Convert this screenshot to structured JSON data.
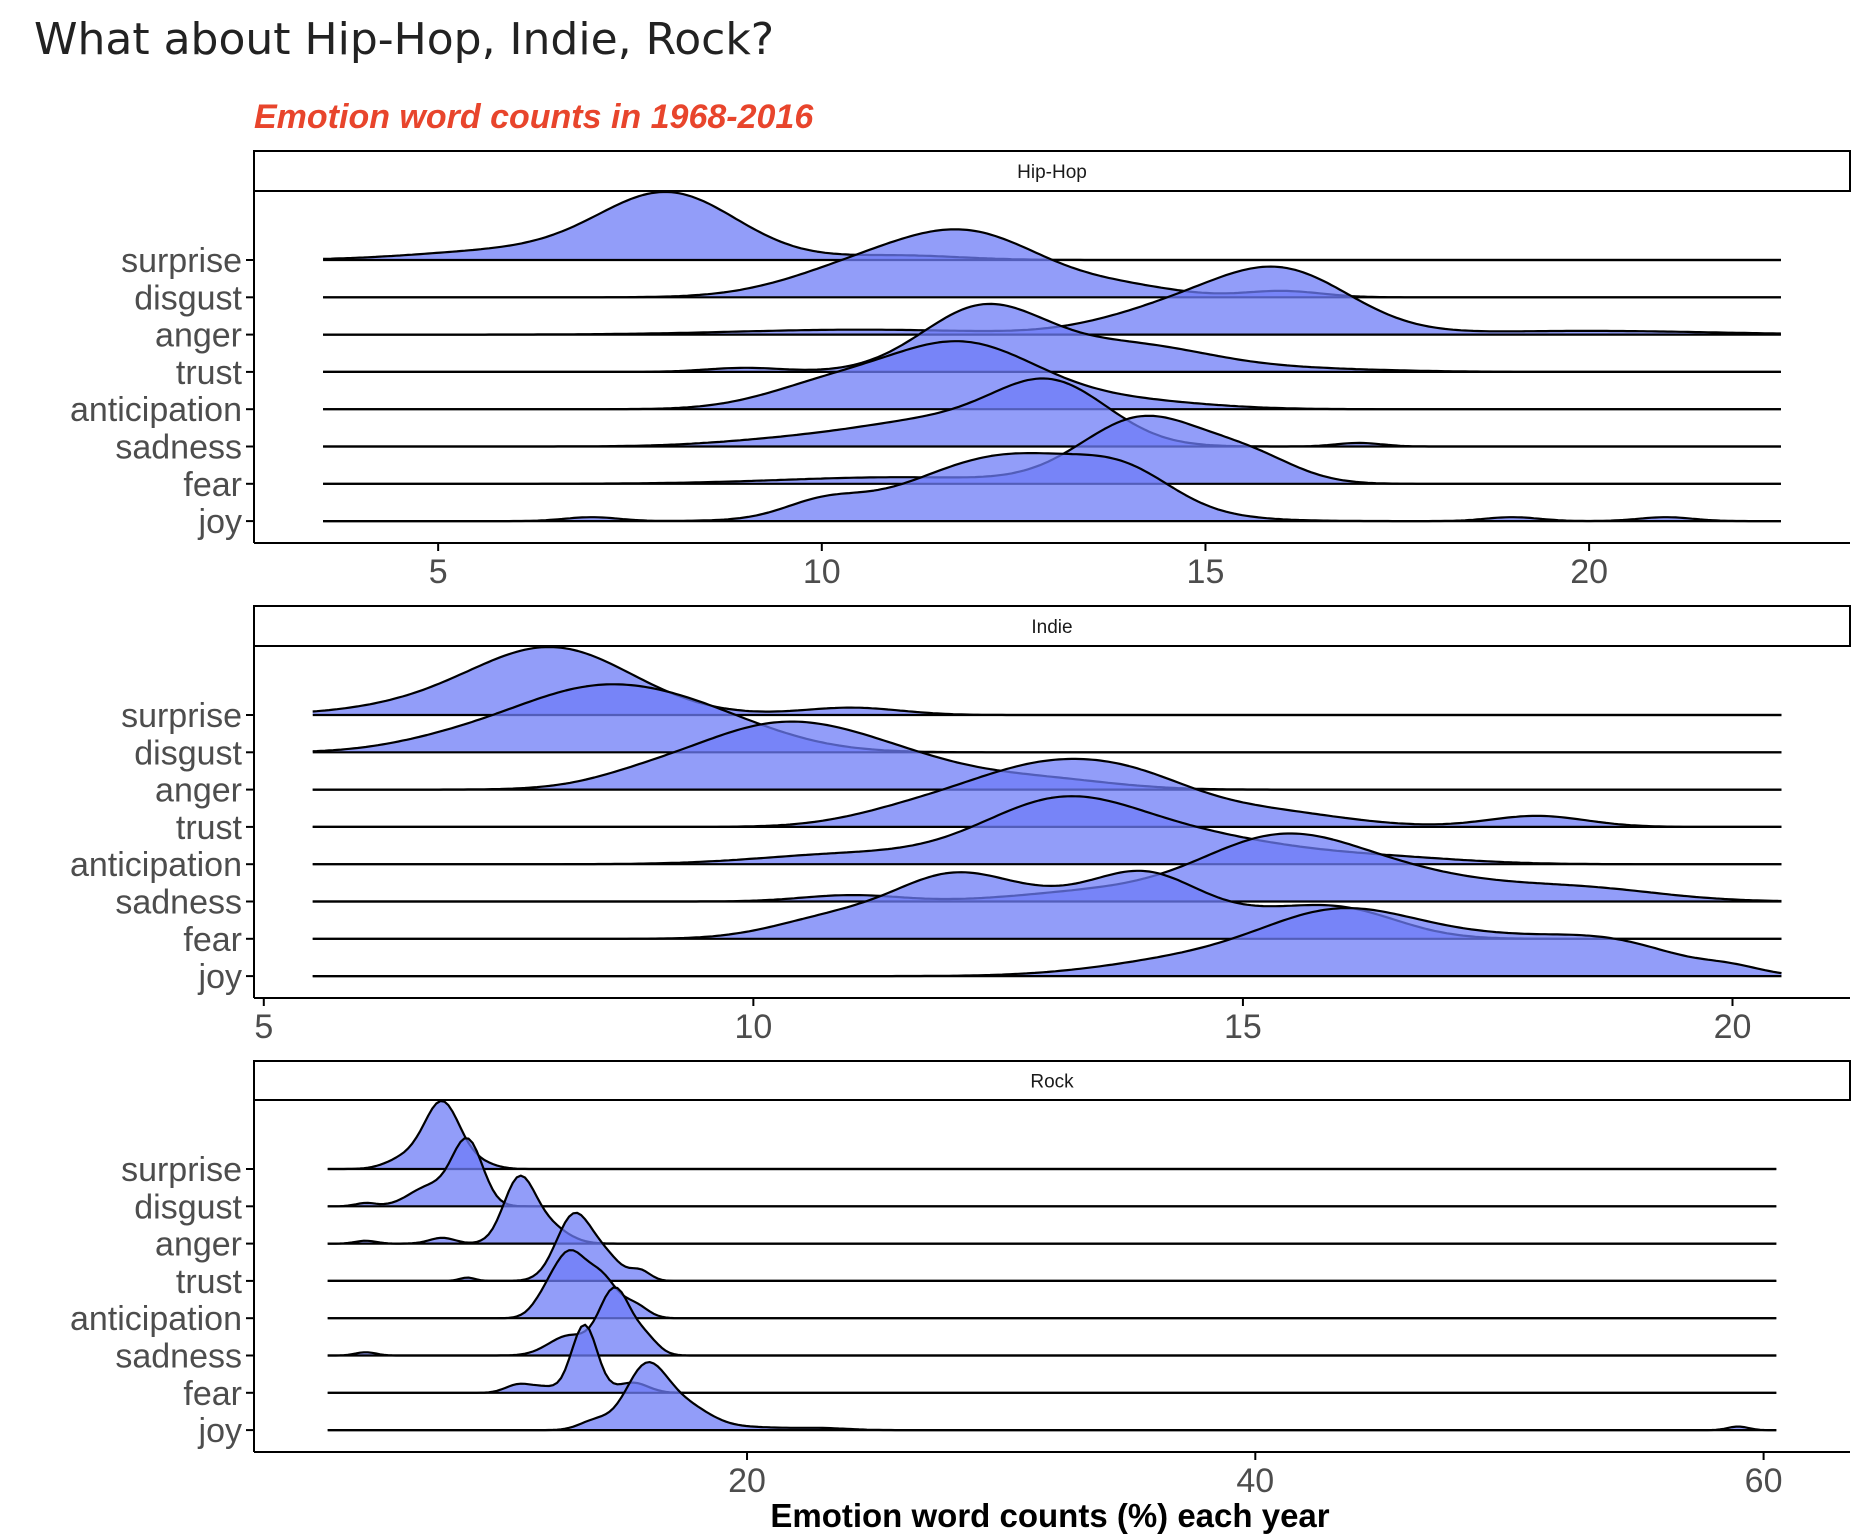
{
  "page_title": "What about Hip-Hop, Indie, Rock?",
  "chart_data": {
    "type": "ridgeline",
    "subtitle": "Emotion word counts in 1968-2016",
    "xlabel": "Emotion word counts (%) each year",
    "ylabel": "",
    "grid": false,
    "colors": {
      "fill": "#6d7cf7",
      "fill_opacity": 0.75,
      "outline": "#000000",
      "subtitle": "#e8452c",
      "axis": "#000000"
    },
    "categories": [
      "surprise",
      "disgust",
      "anger",
      "trust",
      "anticipation",
      "sadness",
      "fear",
      "joy"
    ],
    "panels": [
      {
        "strip_label": "Hip-Hop",
        "x_ticks": [
          5,
          10,
          15,
          20
        ],
        "xlim": [
          2.6,
          23.4
        ],
        "line_range": [
          3.5,
          22.5
        ],
        "series": [
          {
            "name": "surprise",
            "peaks": [
              [
                8,
                1.0,
                0.9
              ],
              [
                6,
                0.15,
                1.2
              ],
              [
                11,
                0.07,
                0.8
              ]
            ]
          },
          {
            "name": "disgust",
            "peaks": [
              [
                11.9,
                0.9,
                1.0
              ],
              [
                10.3,
                0.3,
                0.9
              ],
              [
                14,
                0.12,
                0.7
              ],
              [
                16,
                0.09,
                0.5
              ]
            ]
          },
          {
            "name": "anger",
            "peaks": [
              [
                16,
                1.0,
                0.9
              ],
              [
                14.5,
                0.35,
                0.9
              ],
              [
                10.5,
                0.08,
                1.6
              ],
              [
                20,
                0.06,
                1.6
              ]
            ]
          },
          {
            "name": "trust",
            "peaks": [
              [
                12.1,
                1.1,
                0.8
              ],
              [
                14,
                0.45,
                1.0
              ],
              [
                9,
                0.07,
                0.5
              ],
              [
                16,
                0.06,
                1.2
              ]
            ]
          },
          {
            "name": "anticipation",
            "peaks": [
              [
                11.8,
                1.0,
                1.0
              ],
              [
                10,
                0.3,
                0.8
              ],
              [
                14,
                0.12,
                1.0
              ]
            ]
          },
          {
            "name": "sadness",
            "peaks": [
              [
                13,
                1.0,
                0.75
              ],
              [
                11.5,
                0.4,
                1.0
              ],
              [
                9.7,
                0.12,
                1.0
              ],
              [
                17,
                0.06,
                0.3
              ]
            ]
          },
          {
            "name": "fear",
            "peaks": [
              [
                14.2,
                1.0,
                0.8
              ],
              [
                15.6,
                0.35,
                0.6
              ],
              [
                11,
                0.1,
                1.5
              ]
            ]
          },
          {
            "name": "joy",
            "peaks": [
              [
                12.5,
                0.85,
                1.3
              ],
              [
                14,
                0.3,
                0.6
              ],
              [
                10,
                0.18,
                0.5
              ],
              [
                7,
                0.05,
                0.35
              ],
              [
                19,
                0.05,
                0.35
              ],
              [
                21,
                0.05,
                0.35
              ]
            ]
          }
        ]
      },
      {
        "strip_label": "Indie",
        "x_ticks": [
          5,
          10,
          15,
          20
        ],
        "xlim": [
          4.9,
          21.2
        ],
        "line_range": [
          5.5,
          20.5
        ],
        "series": [
          {
            "name": "surprise",
            "peaks": [
              [
                8,
                1.0,
                0.8
              ],
              [
                7,
                0.2,
                0.9
              ],
              [
                11,
                0.12,
                0.5
              ]
            ]
          },
          {
            "name": "disgust",
            "peaks": [
              [
                8.3,
                0.9,
                0.9
              ],
              [
                9.5,
                0.4,
                0.8
              ],
              [
                6.8,
                0.1,
                0.6
              ]
            ]
          },
          {
            "name": "anger",
            "peaks": [
              [
                10.2,
                1.0,
                0.9
              ],
              [
                11.5,
                0.35,
                0.8
              ],
              [
                13,
                0.15,
                0.7
              ],
              [
                8.8,
                0.1,
                0.5
              ]
            ]
          },
          {
            "name": "trust",
            "peaks": [
              [
                13,
                1.0,
                0.9
              ],
              [
                14,
                0.3,
                0.6
              ],
              [
                15.2,
                0.25,
                0.8
              ],
              [
                18,
                0.18,
                0.5
              ],
              [
                11.5,
                0.15,
                0.6
              ]
            ]
          },
          {
            "name": "anticipation",
            "peaks": [
              [
                13.1,
                1.0,
                0.8
              ],
              [
                14.5,
                0.45,
                1.0
              ],
              [
                11,
                0.18,
                0.9
              ],
              [
                16.5,
                0.1,
                0.8
              ]
            ]
          },
          {
            "name": "sadness",
            "peaks": [
              [
                15.3,
                1.0,
                0.8
              ],
              [
                16.5,
                0.5,
                1.0
              ],
              [
                18.5,
                0.22,
                0.8
              ],
              [
                11,
                0.12,
                0.5
              ],
              [
                13.5,
                0.18,
                0.8
              ]
            ]
          },
          {
            "name": "fear",
            "peaks": [
              [
                12,
                1.0,
                0.6
              ],
              [
                14,
                1.0,
                0.55
              ],
              [
                16,
                0.5,
                0.6
              ],
              [
                13,
                0.5,
                0.6
              ],
              [
                10.8,
                0.35,
                0.6
              ],
              [
                15,
                0.3,
                0.6
              ]
            ]
          },
          {
            "name": "joy",
            "peaks": [
              [
                16,
                1.0,
                0.8
              ],
              [
                18.8,
                0.5,
                0.7
              ],
              [
                17.5,
                0.5,
                0.8
              ],
              [
                14.5,
                0.28,
                0.9
              ],
              [
                20,
                0.1,
                0.3
              ]
            ]
          }
        ]
      },
      {
        "strip_label": "Rock",
        "x_ticks": [
          20,
          40,
          60
        ],
        "xlim": [
          0.6,
          63.4
        ],
        "line_range": [
          3.5,
          60.5
        ],
        "series": [
          {
            "name": "surprise",
            "peaks": [
              [
                8,
                1.0,
                0.7
              ],
              [
                6.5,
                0.15,
                0.7
              ],
              [
                9.5,
                0.08,
                0.6
              ]
            ]
          },
          {
            "name": "disgust",
            "peaks": [
              [
                9,
                1.0,
                0.6
              ],
              [
                7.5,
                0.3,
                0.8
              ],
              [
                5,
                0.05,
                0.4
              ]
            ]
          },
          {
            "name": "anger",
            "peaks": [
              [
                11,
                1.0,
                0.6
              ],
              [
                12,
                0.35,
                0.8
              ],
              [
                8,
                0.1,
                0.5
              ],
              [
                5,
                0.05,
                0.4
              ]
            ]
          },
          {
            "name": "trust",
            "peaks": [
              [
                13.2,
                1.0,
                0.7
              ],
              [
                14.5,
                0.3,
                0.6
              ],
              [
                15.8,
                0.15,
                0.4
              ],
              [
                9,
                0.05,
                0.3
              ]
            ]
          },
          {
            "name": "anticipation",
            "peaks": [
              [
                13,
                1.0,
                0.65
              ],
              [
                14.3,
                0.6,
                0.6
              ],
              [
                15.6,
                0.2,
                0.5
              ],
              [
                12,
                0.2,
                0.5
              ]
            ]
          },
          {
            "name": "sadness",
            "peaks": [
              [
                14.8,
                1.0,
                0.6
              ],
              [
                13,
                0.3,
                0.8
              ],
              [
                16,
                0.25,
                0.5
              ],
              [
                5,
                0.05,
                0.4
              ]
            ]
          },
          {
            "name": "fear",
            "peaks": [
              [
                13.6,
                1.0,
                0.5
              ],
              [
                11,
                0.12,
                0.5
              ],
              [
                15.5,
                0.15,
                0.6
              ],
              [
                12,
                0.08,
                0.5
              ]
            ]
          },
          {
            "name": "joy",
            "peaks": [
              [
                16,
                1.0,
                0.8
              ],
              [
                17.5,
                0.4,
                1.0
              ],
              [
                14,
                0.15,
                0.6
              ],
              [
                20,
                0.05,
                1.5
              ],
              [
                23,
                0.03,
                1.0
              ],
              [
                59,
                0.06,
                0.4
              ]
            ]
          }
        ]
      }
    ]
  }
}
